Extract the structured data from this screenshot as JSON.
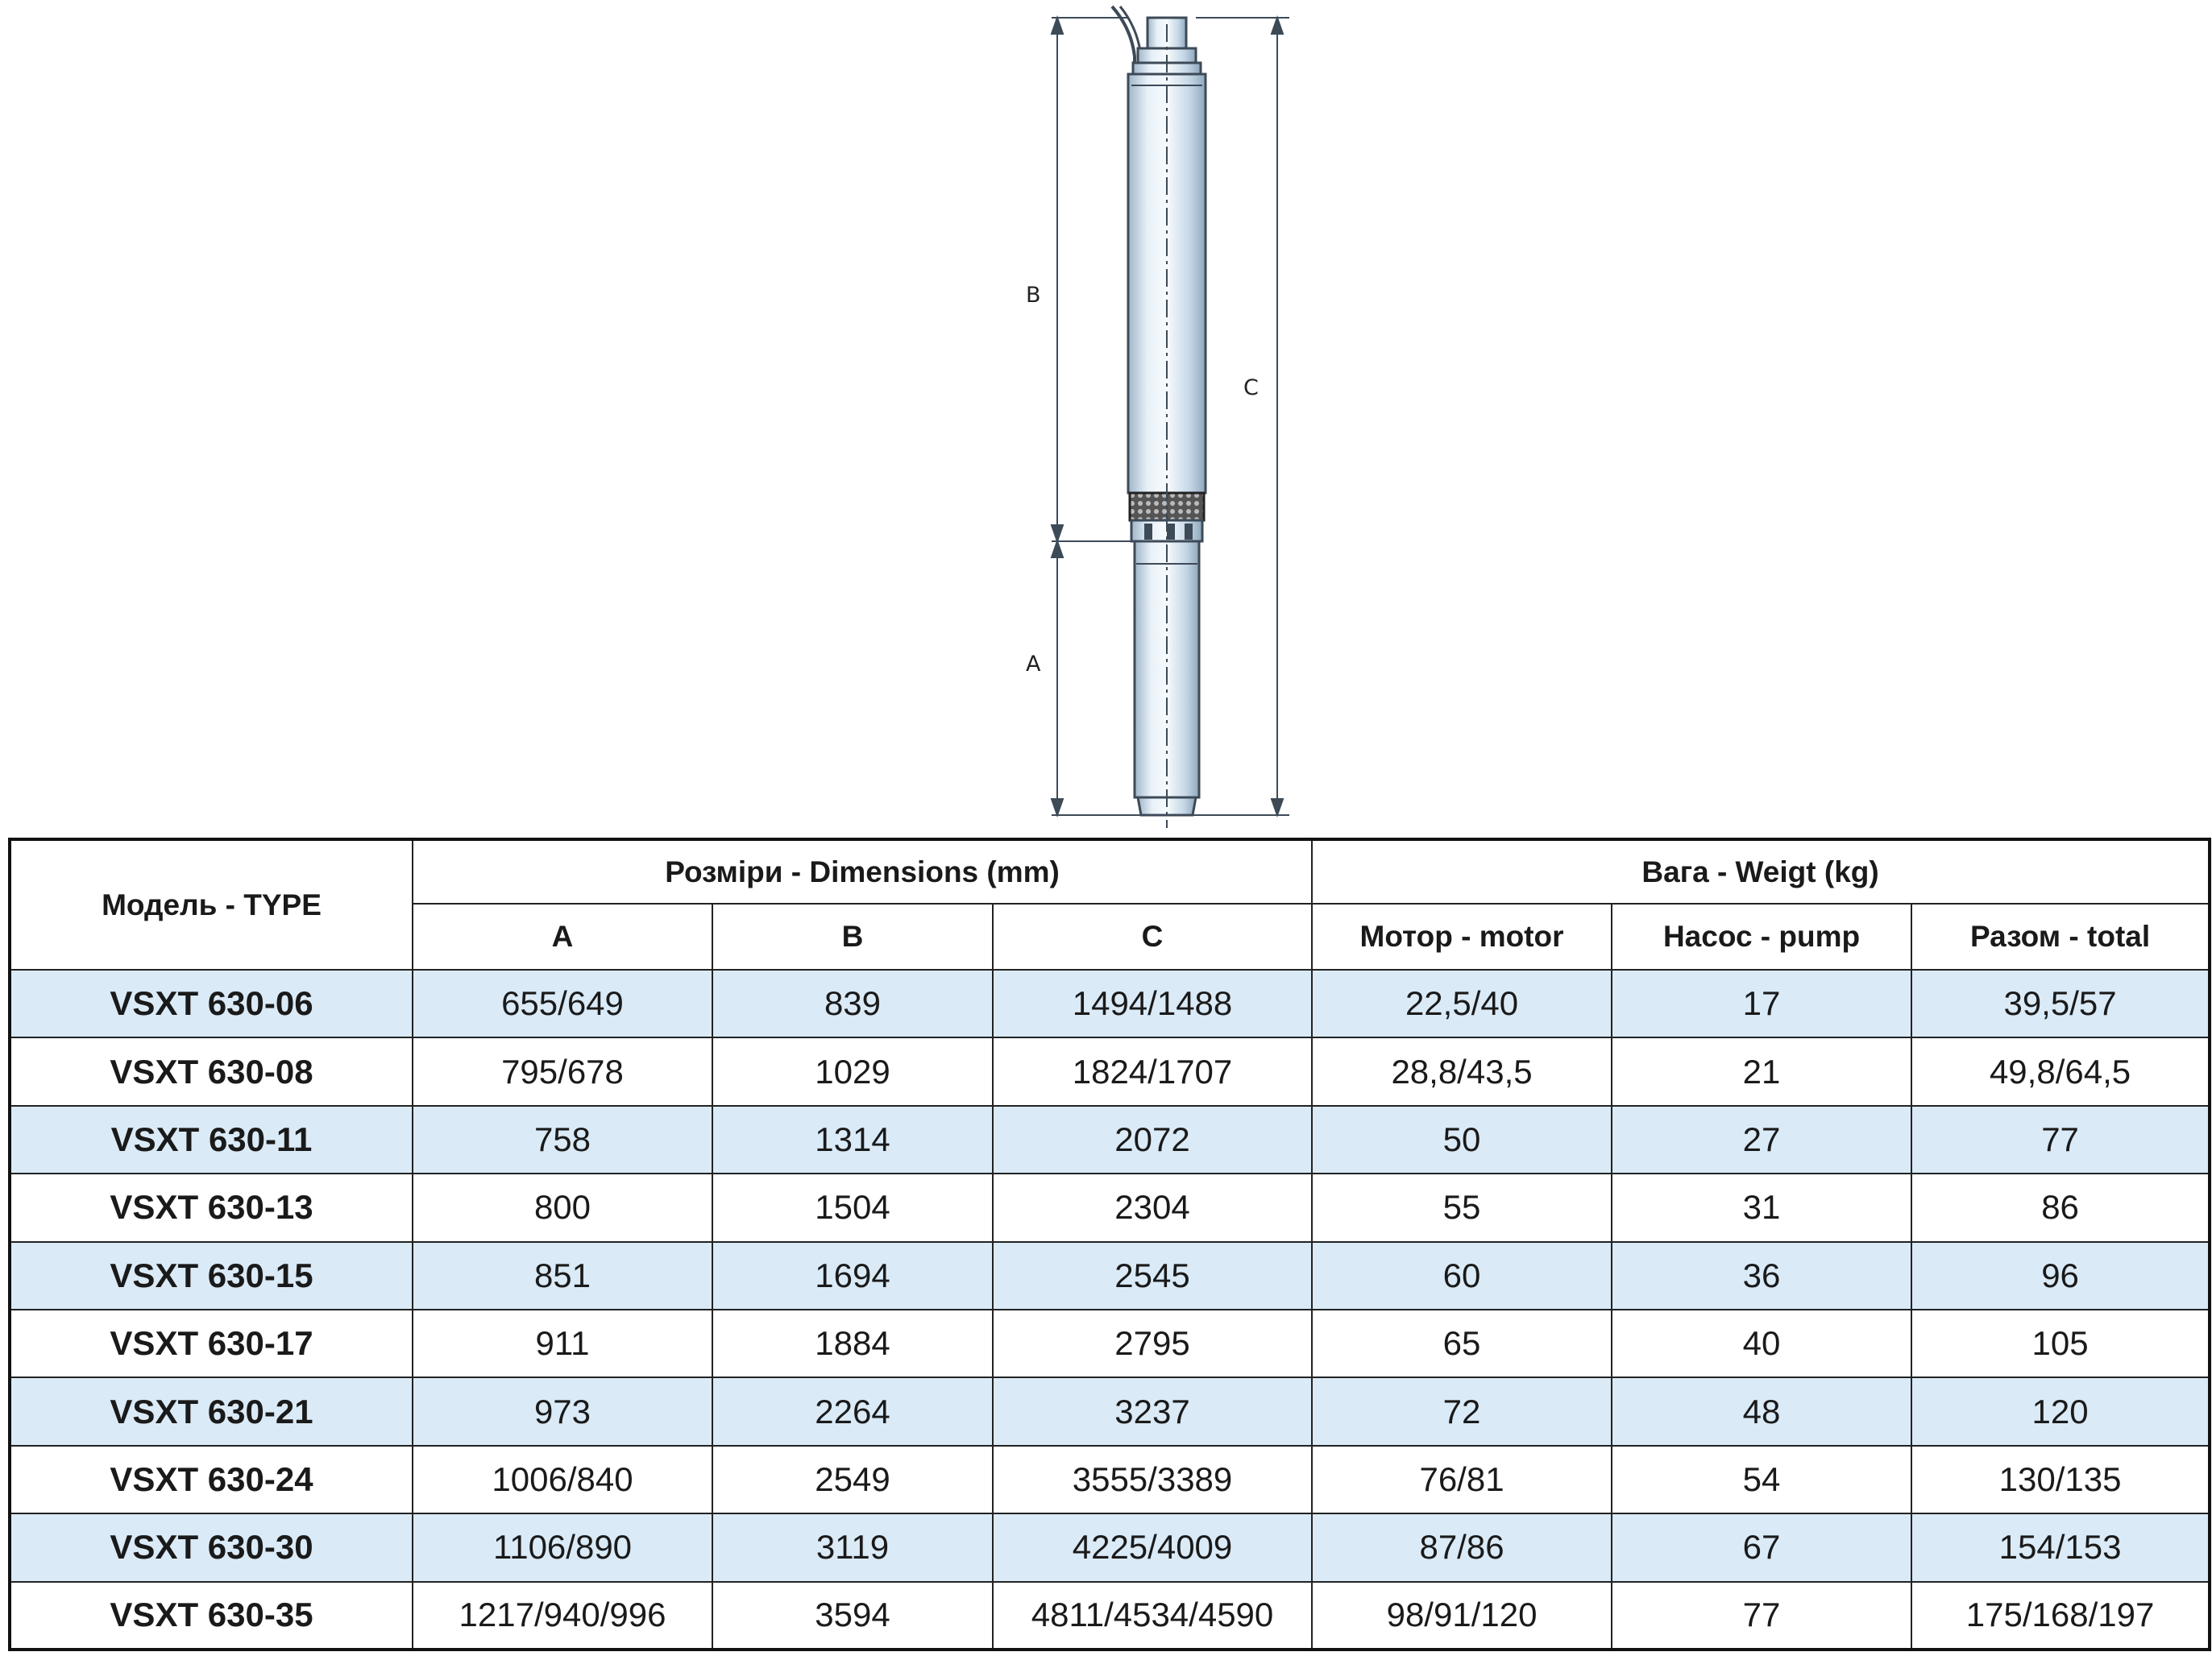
{
  "drawing": {
    "labels": {
      "a": "A",
      "b": "B",
      "c": "C"
    },
    "colors": {
      "body": "#c9dcec",
      "outline": "#3d4a57",
      "mesh": "#2a2a2a"
    }
  },
  "table": {
    "header": {
      "model": "Модель - TYPE",
      "dimensions_group": "Розміри - Dimensions (mm)",
      "weight_group": "Вага - Weigt (kg)",
      "columns": [
        "A",
        "B",
        "C",
        "Мотор - motor",
        "Насос - pump",
        "Разом - total"
      ]
    },
    "rows": [
      [
        "VSXT 630-06",
        "655/649",
        "839",
        "1494/1488",
        "22,5/40",
        "17",
        "39,5/57"
      ],
      [
        "VSXT 630-08",
        "795/678",
        "1029",
        "1824/1707",
        "28,8/43,5",
        "21",
        "49,8/64,5"
      ],
      [
        "VSXT 630-11",
        "758",
        "1314",
        "2072",
        "50",
        "27",
        "77"
      ],
      [
        "VSXT 630-13",
        "800",
        "1504",
        "2304",
        "55",
        "31",
        "86"
      ],
      [
        "VSXT 630-15",
        "851",
        "1694",
        "2545",
        "60",
        "36",
        "96"
      ],
      [
        "VSXT 630-17",
        "911",
        "1884",
        "2795",
        "65",
        "40",
        "105"
      ],
      [
        "VSXT 630-21",
        "973",
        "2264",
        "3237",
        "72",
        "48",
        "120"
      ],
      [
        "VSXT 630-24",
        "1006/840",
        "2549",
        "3555/3389",
        "76/81",
        "54",
        "130/135"
      ],
      [
        "VSXT 630-30",
        "1106/890",
        "3119",
        "4225/4009",
        "87/86",
        "67",
        "154/153"
      ],
      [
        "VSXT 630-35",
        "1217/940/996",
        "3594",
        "4811/4534/4590",
        "98/91/120",
        "77",
        "175/168/197"
      ]
    ],
    "colors": {
      "stripe": "#daeaf7",
      "border": "#222222"
    }
  }
}
